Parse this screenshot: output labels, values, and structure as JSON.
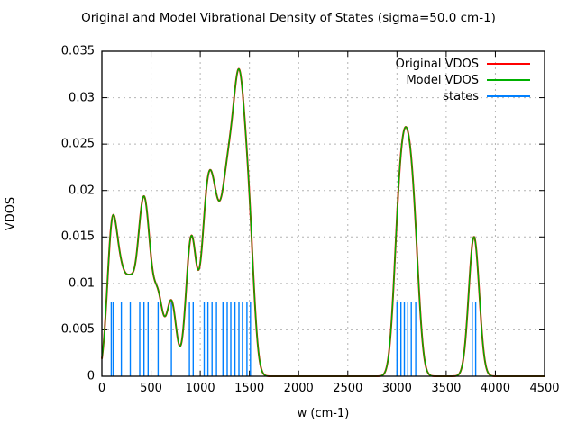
{
  "chart_data": {
    "type": "line",
    "title": "Original and Model Vibrational Density of States (sigma=50.0 cm-1)",
    "xlabel": "w (cm-1)",
    "ylabel": "VDOS",
    "xlim": [
      0,
      4500
    ],
    "ylim": [
      0,
      0.035
    ],
    "xticks": {
      "values": [
        0,
        500,
        1000,
        1500,
        2000,
        2500,
        3000,
        3500,
        4000,
        4500
      ],
      "labels": [
        "0",
        "500",
        "1000",
        "1500",
        "2000",
        "2500",
        "3000",
        "3500",
        "4000",
        "4500"
      ]
    },
    "yticks": {
      "values": [
        0,
        0.005,
        0.01,
        0.015,
        0.02,
        0.025,
        0.03,
        0.035
      ],
      "labels": [
        "0",
        "0.005",
        "0.01",
        "0.015",
        "0.02",
        "0.025",
        "0.03",
        "0.035"
      ]
    },
    "grid": true,
    "grid_color": "#b4b4b4",
    "legend": {
      "position": "top-right",
      "entries": [
        {
          "label": "Original VDOS",
          "color": "#ff0000"
        },
        {
          "label": "Model VDOS",
          "color": "#00b000"
        },
        {
          "label": "states",
          "color": "#0080ff"
        }
      ]
    },
    "series": [
      {
        "name": "Original VDOS",
        "color": "#ff0000",
        "generator": "sum_of_gaussians",
        "sigma": 50,
        "note": "visually coincides with Model VDOS curve"
      },
      {
        "name": "Model VDOS",
        "color": "#00b000",
        "generator": "sum_of_gaussians",
        "sigma": 50,
        "gaussian_peak_amplitude": 0.0079788,
        "centers": [
          95,
          115,
          198,
          289,
          385,
          428,
          470,
          572,
          707,
          890,
          928,
          1040,
          1078,
          1120,
          1165,
          1231,
          1274,
          1311,
          1353,
          1393,
          1429,
          1475,
          1510,
          3000,
          3040,
          3075,
          3110,
          3145,
          3190,
          3765,
          3800
        ],
        "weights": [
          1,
          1,
          1,
          1,
          1,
          1,
          1,
          1,
          1,
          1,
          1,
          1,
          1,
          1,
          1,
          1,
          1,
          1,
          1,
          2,
          1,
          1,
          1,
          1,
          1,
          1,
          1,
          1,
          1,
          1,
          1
        ],
        "observed_peaks": [
          {
            "x": 130,
            "y": 0.0186
          },
          {
            "x": 420,
            "y": 0.0197
          },
          {
            "x": 620,
            "y": 0.0074
          },
          {
            "x": 900,
            "y": 0.016
          },
          {
            "x": 1082,
            "y": 0.0244
          },
          {
            "x": 1430,
            "y": 0.0301
          },
          {
            "x": 3080,
            "y": 0.0263
          },
          {
            "x": 3783,
            "y": 0.0153
          }
        ],
        "observed_minima": [
          {
            "x": 295,
            "y": 0.0124
          },
          {
            "x": 520,
            "y": 0.0107
          },
          {
            "x": 758,
            "y": 0.0049
          },
          {
            "x": 975,
            "y": 0.0127
          },
          {
            "x": 1170,
            "y": 0.0181
          },
          {
            "x": 2300,
            "y": 0.0
          }
        ]
      },
      {
        "name": "states",
        "color": "#0080ff",
        "style": "impulses",
        "stem_height": 0.008,
        "frequencies": [
          95,
          115,
          198,
          289,
          385,
          428,
          470,
          572,
          707,
          890,
          928,
          1040,
          1078,
          1120,
          1165,
          1231,
          1274,
          1311,
          1353,
          1393,
          1429,
          1475,
          1510,
          3000,
          3040,
          3075,
          3110,
          3145,
          3190,
          3765,
          3800
        ]
      }
    ]
  }
}
